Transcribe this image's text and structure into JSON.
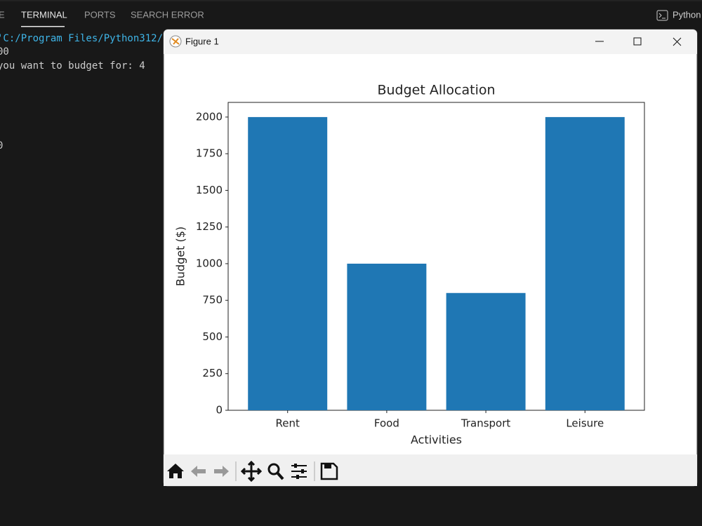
{
  "panel_tabs": [
    "E",
    "TERMINAL",
    "PORTS",
    "SEARCH ERROR"
  ],
  "terminal_profile": "Python",
  "terminal_lines": [
    "'C:/Program Files/Python312/",
    "00",
    "you want to budget for: 4",
    "0"
  ],
  "window_title": "Figure 1",
  "chart_data": {
    "type": "bar",
    "title": "Budget Allocation",
    "xlabel": "Activities",
    "ylabel": "Budget ($)",
    "categories": [
      "Rent",
      "Food",
      "Transport",
      "Leisure"
    ],
    "values": [
      2000,
      1000,
      800,
      2000
    ],
    "color": "#1f77b4",
    "ylim": [
      0,
      2100
    ],
    "yticks": [
      0,
      250,
      500,
      750,
      1000,
      1250,
      1500,
      1750,
      2000
    ],
    "grid": false
  }
}
